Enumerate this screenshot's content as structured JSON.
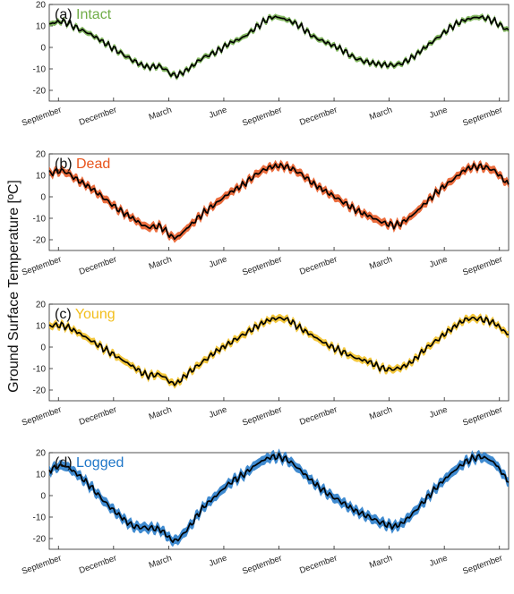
{
  "ylabel": "Ground Surface Temperature [ºC]",
  "chart_data": [
    {
      "type": "line",
      "panel_label": "(a)",
      "title": "Intact",
      "color": "#70AD47",
      "yticks": [
        20,
        10,
        0,
        -10,
        -20
      ],
      "ylim": [
        -25,
        20
      ],
      "xlim": [
        0,
        25
      ],
      "xticks": [
        {
          "x": 0.5,
          "label": "September"
        },
        {
          "x": 3.5,
          "label": "December"
        },
        {
          "x": 6.5,
          "label": "March"
        },
        {
          "x": 9.5,
          "label": "June"
        },
        {
          "x": 12.5,
          "label": "September"
        },
        {
          "x": 15.5,
          "label": "December"
        },
        {
          "x": 18.5,
          "label": "March"
        },
        {
          "x": 21.5,
          "label": "June"
        },
        {
          "x": 24.5,
          "label": "September"
        }
      ],
      "series": [
        {
          "band": 1.2,
          "values": [
            11,
            12,
            9,
            6,
            2,
            -2,
            -6,
            -9,
            -9,
            -13,
            -10,
            -5,
            -2,
            2,
            5,
            10,
            14,
            13,
            10,
            5,
            2,
            -1,
            -5,
            -7,
            -8,
            -8,
            -5,
            0,
            5,
            10,
            13,
            14,
            12,
            8
          ]
        }
      ]
    },
    {
      "type": "line",
      "panel_label": "(b)",
      "title": "Dead",
      "color": "#E8541C",
      "yticks": [
        20,
        10,
        0,
        -10,
        -20
      ],
      "ylim": [
        -25,
        20
      ],
      "xlim": [
        0,
        25
      ],
      "xticks": [
        {
          "x": 0.5,
          "label": "September"
        },
        {
          "x": 3.5,
          "label": "December"
        },
        {
          "x": 6.5,
          "label": "March"
        },
        {
          "x": 9.5,
          "label": "June"
        },
        {
          "x": 12.5,
          "label": "September"
        },
        {
          "x": 15.5,
          "label": "December"
        },
        {
          "x": 18.5,
          "label": "March"
        },
        {
          "x": 21.5,
          "label": "June"
        },
        {
          "x": 24.5,
          "label": "September"
        }
      ],
      "series": [
        {
          "band": 1.8,
          "values": [
            11,
            12,
            8,
            4,
            -1,
            -6,
            -10,
            -14,
            -14,
            -19,
            -14,
            -8,
            -3,
            2,
            6,
            11,
            14,
            14,
            11,
            6,
            2,
            -2,
            -6,
            -9,
            -12,
            -13,
            -9,
            -3,
            3,
            8,
            13,
            14,
            12,
            6
          ]
        }
      ]
    },
    {
      "type": "line",
      "panel_label": "(c)",
      "title": "Young",
      "color": "#F2BE1C",
      "yticks": [
        20,
        10,
        0,
        -10,
        -20
      ],
      "ylim": [
        -25,
        20
      ],
      "xlim": [
        0,
        25
      ],
      "xticks": [
        {
          "x": 0.5,
          "label": "September"
        },
        {
          "x": 3.5,
          "label": "December"
        },
        {
          "x": 6.5,
          "label": "March"
        },
        {
          "x": 9.5,
          "label": "June"
        },
        {
          "x": 12.5,
          "label": "September"
        },
        {
          "x": 15.5,
          "label": "December"
        },
        {
          "x": 18.5,
          "label": "March"
        },
        {
          "x": 21.5,
          "label": "June"
        },
        {
          "x": 24.5,
          "label": "September"
        }
      ],
      "series": [
        {
          "band": 1.6,
          "values": [
            10,
            10,
            7,
            3,
            -1,
            -5,
            -9,
            -13,
            -13,
            -17,
            -12,
            -7,
            -2,
            2,
            6,
            10,
            13,
            13,
            9,
            5,
            1,
            -2,
            -5,
            -7,
            -10,
            -10,
            -7,
            -1,
            4,
            9,
            13,
            13,
            11,
            6
          ]
        }
      ]
    },
    {
      "type": "line",
      "panel_label": "(d)",
      "title": "Logged",
      "color": "#1F77C8",
      "yticks": [
        20,
        10,
        0,
        -10,
        -20
      ],
      "ylim": [
        -25,
        20
      ],
      "xlim": [
        0,
        25
      ],
      "xticks": [
        {
          "x": 0.5,
          "label": "September"
        },
        {
          "x": 3.5,
          "label": "December"
        },
        {
          "x": 6.5,
          "label": "March"
        },
        {
          "x": 9.5,
          "label": "June"
        },
        {
          "x": 12.5,
          "label": "September"
        },
        {
          "x": 15.5,
          "label": "December"
        },
        {
          "x": 18.5,
          "label": "March"
        },
        {
          "x": 21.5,
          "label": "June"
        },
        {
          "x": 24.5,
          "label": "September"
        }
      ],
      "series": [
        {
          "band": 2.2,
          "values": [
            12,
            14,
            10,
            4,
            -3,
            -9,
            -14,
            -15,
            -16,
            -21,
            -15,
            -6,
            0,
            6,
            10,
            15,
            18,
            17,
            12,
            6,
            1,
            -3,
            -7,
            -10,
            -13,
            -14,
            -9,
            -2,
            5,
            11,
            16,
            18,
            15,
            7
          ]
        }
      ]
    }
  ]
}
